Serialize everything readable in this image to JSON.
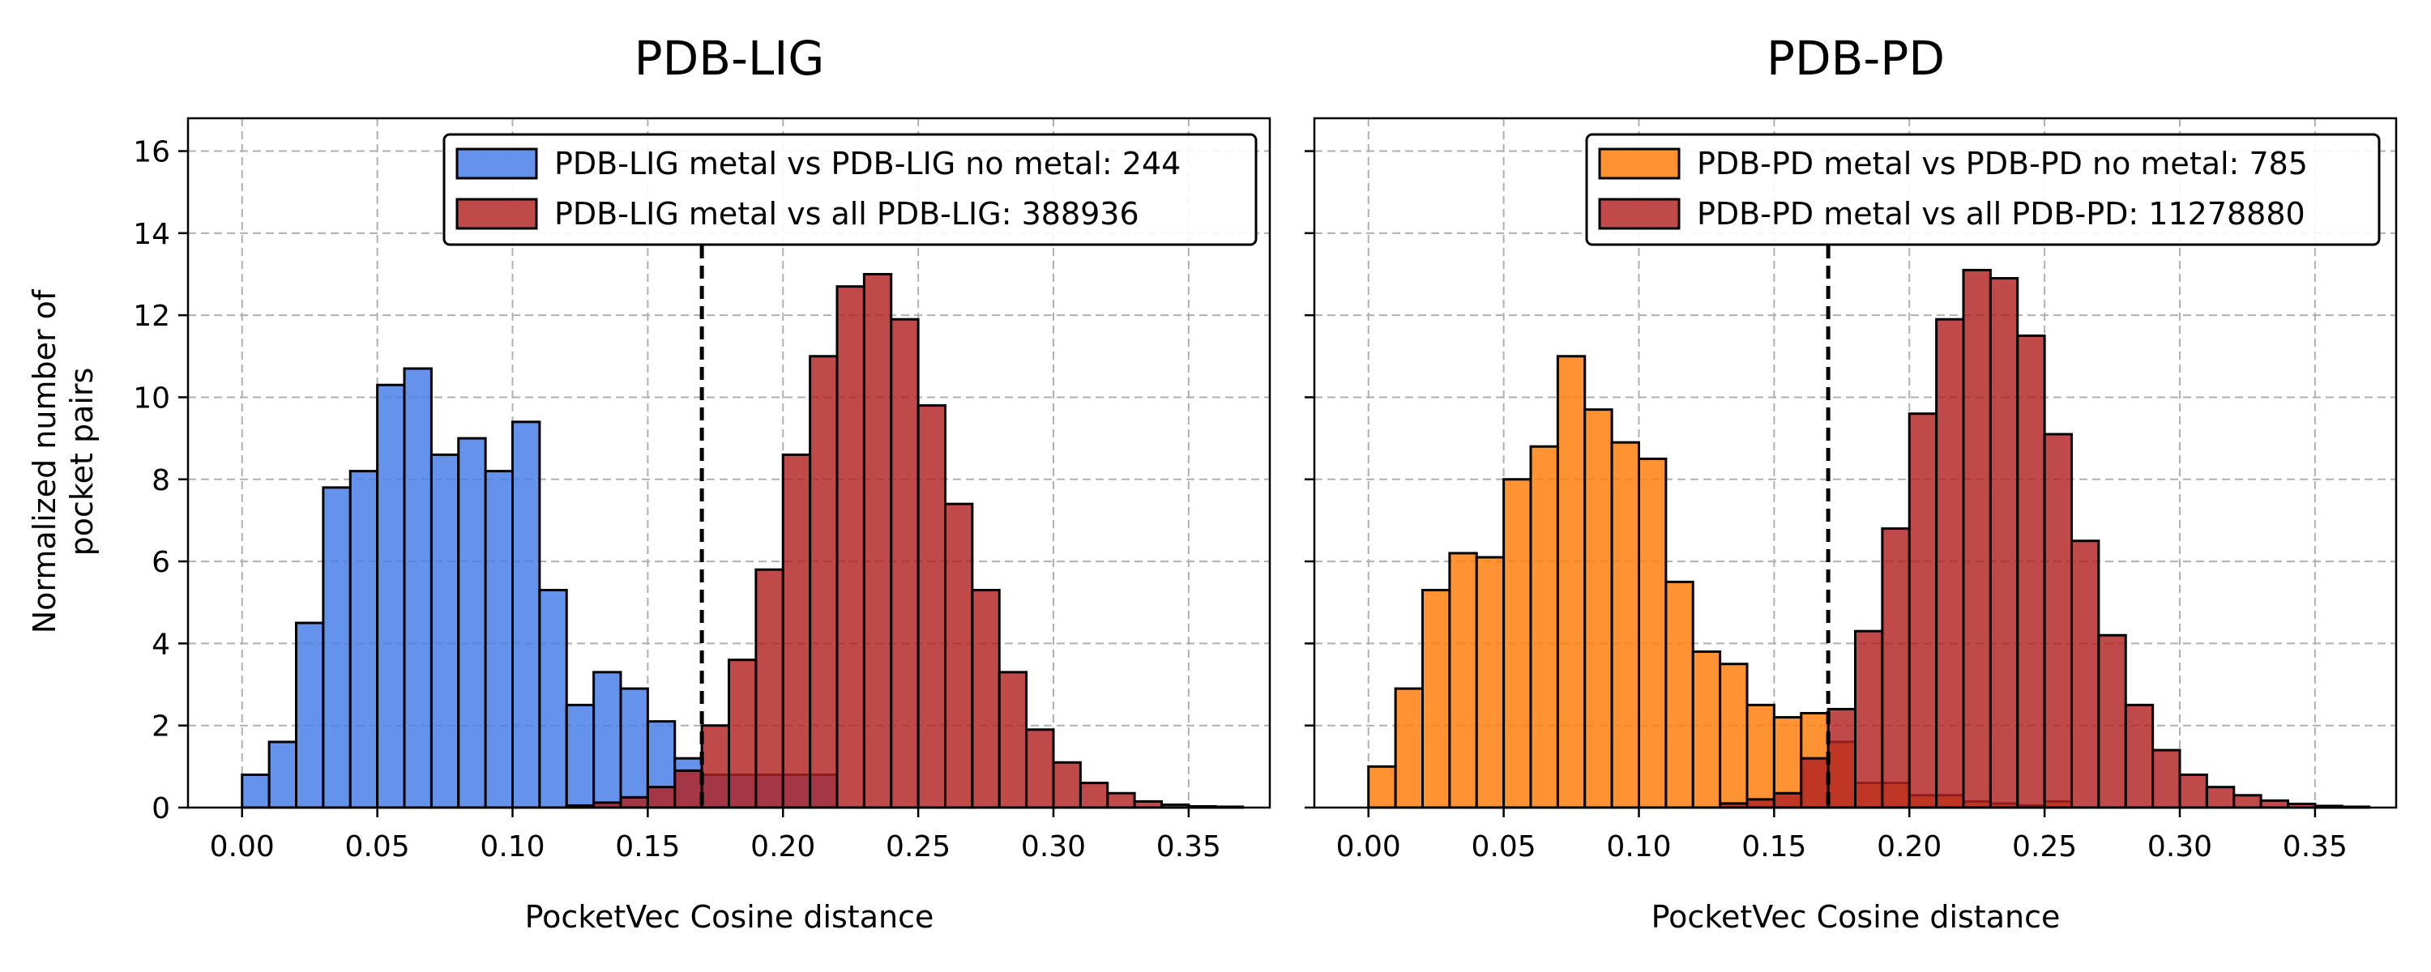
{
  "chart_data": [
    {
      "type": "bar",
      "title": "PDB-LIG",
      "xlabel": "PocketVec Cosine distance",
      "ylabel": "Normalized number of pocket pairs",
      "ylabel_lines": [
        "Normalized number of",
        "pocket pairs"
      ],
      "xlim": [
        -0.02,
        0.38
      ],
      "ylim": [
        0,
        16.8
      ],
      "xticks": [
        0.0,
        0.05,
        0.1,
        0.15,
        0.2,
        0.25,
        0.3,
        0.35
      ],
      "xtick_labels": [
        "0.00",
        "0.05",
        "0.10",
        "0.15",
        "0.20",
        "0.25",
        "0.30",
        "0.35"
      ],
      "yticks": [
        0,
        2,
        4,
        6,
        8,
        10,
        12,
        14,
        16
      ],
      "ytick_labels": [
        "0",
        "2",
        "4",
        "6",
        "8",
        "10",
        "12",
        "14",
        "16"
      ],
      "grid": true,
      "legend_position": "top-right",
      "threshold": 0.17,
      "bin_width": 0.01,
      "series": [
        {
          "name": "PDB-LIG metal vs PDB-LIG no metal: 244",
          "color": "#4a7fe6",
          "x": [
            0.0,
            0.01,
            0.02,
            0.03,
            0.04,
            0.05,
            0.06,
            0.07,
            0.08,
            0.09,
            0.1,
            0.11,
            0.12,
            0.13,
            0.14,
            0.15,
            0.16,
            0.17,
            0.18,
            0.19,
            0.2,
            0.21
          ],
          "values": [
            0.8,
            1.6,
            4.5,
            7.8,
            8.2,
            10.3,
            10.7,
            8.6,
            9.0,
            8.2,
            9.4,
            5.3,
            2.5,
            3.3,
            2.9,
            2.1,
            1.2,
            0.8,
            0.8,
            0.8,
            0.8,
            0.8
          ]
        },
        {
          "name": "PDB-LIG metal vs all PDB-LIG: 388936",
          "color": "#b22222",
          "x": [
            0.12,
            0.13,
            0.14,
            0.15,
            0.16,
            0.17,
            0.18,
            0.19,
            0.2,
            0.21,
            0.22,
            0.23,
            0.24,
            0.25,
            0.26,
            0.27,
            0.28,
            0.29,
            0.3,
            0.31,
            0.32,
            0.33,
            0.34,
            0.35,
            0.36
          ],
          "values": [
            0.05,
            0.12,
            0.25,
            0.5,
            0.9,
            2.0,
            3.6,
            5.8,
            8.6,
            11.0,
            12.7,
            13.0,
            11.9,
            9.8,
            7.4,
            5.3,
            3.3,
            1.9,
            1.1,
            0.6,
            0.35,
            0.15,
            0.07,
            0.03,
            0.02
          ]
        }
      ]
    },
    {
      "type": "bar",
      "title": "PDB-PD",
      "xlabel": "PocketVec Cosine distance",
      "xlim": [
        -0.02,
        0.38
      ],
      "ylim": [
        0,
        16.8
      ],
      "xticks": [
        0.0,
        0.05,
        0.1,
        0.15,
        0.2,
        0.25,
        0.3,
        0.35
      ],
      "xtick_labels": [
        "0.00",
        "0.05",
        "0.10",
        "0.15",
        "0.20",
        "0.25",
        "0.30",
        "0.35"
      ],
      "yticks": [
        0,
        2,
        4,
        6,
        8,
        10,
        12,
        14,
        16
      ],
      "grid": true,
      "legend_position": "top-right",
      "threshold": 0.17,
      "bin_width": 0.01,
      "series": [
        {
          "name": "PDB-PD metal vs PDB-PD no metal: 785",
          "color": "#ff7f0e",
          "x": [
            0.0,
            0.01,
            0.02,
            0.03,
            0.04,
            0.05,
            0.06,
            0.07,
            0.08,
            0.09,
            0.1,
            0.11,
            0.12,
            0.13,
            0.14,
            0.15,
            0.16,
            0.17,
            0.18,
            0.19,
            0.2,
            0.21,
            0.22,
            0.23,
            0.24,
            0.25
          ],
          "values": [
            1.0,
            2.9,
            5.3,
            6.2,
            6.1,
            8.0,
            8.8,
            11.0,
            9.7,
            8.9,
            8.5,
            5.5,
            3.8,
            3.5,
            2.5,
            2.2,
            2.3,
            1.6,
            0.6,
            0.6,
            0.3,
            0.3,
            0.15,
            0.1,
            0.05,
            0.15
          ]
        },
        {
          "name": "PDB-PD metal vs all PDB-PD: 11278880",
          "color": "#b22222",
          "x": [
            0.13,
            0.14,
            0.15,
            0.16,
            0.17,
            0.18,
            0.19,
            0.2,
            0.21,
            0.22,
            0.23,
            0.24,
            0.25,
            0.26,
            0.27,
            0.28,
            0.29,
            0.3,
            0.31,
            0.32,
            0.33,
            0.34,
            0.35,
            0.36
          ],
          "values": [
            0.1,
            0.2,
            0.35,
            1.2,
            2.4,
            4.3,
            6.8,
            9.6,
            11.9,
            13.1,
            12.9,
            11.5,
            9.1,
            6.5,
            4.2,
            2.5,
            1.4,
            0.8,
            0.5,
            0.3,
            0.17,
            0.09,
            0.04,
            0.02
          ]
        }
      ]
    }
  ]
}
